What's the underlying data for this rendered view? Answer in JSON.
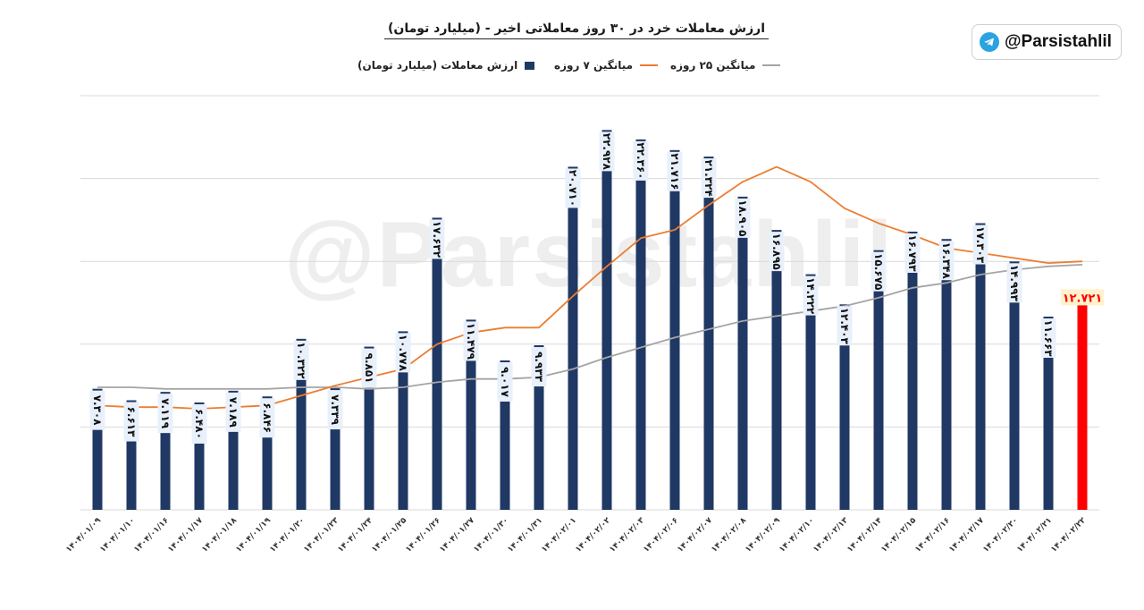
{
  "title": "ارزش معاملات خرد در ۳۰ روز معاملاتی اخیر - (میلیارد تومان)",
  "brand": {
    "handle": "@Parsistahlil",
    "icon": "telegram-icon"
  },
  "watermark": "@Parsistahlil",
  "colors": {
    "bar": "#203864",
    "last_bar": "#ff0000",
    "ma7": "#ed7d31",
    "ma25": "#a5a5a5",
    "label_bg": "#e8f0fb",
    "last_label_bg": "#fff2cc",
    "last_label_text": "#ff0000",
    "grid": "#d9d9d9"
  },
  "chart_data": {
    "type": "bar",
    "ylim": [
      0,
      25
    ],
    "grid": true,
    "legend_position": "top",
    "categories": [
      "۱۴۰۴/۰۱/۰۹",
      "۱۴۰۴/۰۱/۱۰",
      "۱۴۰۴/۰۱/۱۶",
      "۱۴۰۴/۰۱/۱۷",
      "۱۴۰۴/۰۱/۱۸",
      "۱۴۰۴/۰۱/۱۹",
      "۱۴۰۴/۰۱/۲۰",
      "۱۴۰۴/۰۱/۲۳",
      "۱۴۰۴/۰۱/۲۴",
      "۱۴۰۴/۰۱/۲۵",
      "۱۴۰۴/۰۱/۲۶",
      "۱۴۰۴/۰۱/۲۷",
      "۱۴۰۴/۰۱/۳۰",
      "۱۴۰۴/۰۱/۳۱",
      "۱۴۰۴/۰۲/۰۱",
      "۱۴۰۴/۰۲/۰۲",
      "۱۴۰۴/۰۲/۰۳",
      "۱۴۰۴/۰۲/۰۶",
      "۱۴۰۴/۰۲/۰۷",
      "۱۴۰۴/۰۲/۰۸",
      "۱۴۰۴/۰۲/۰۹",
      "۱۴۰۴/۰۲/۱۰",
      "۱۴۰۴/۰۲/۱۳",
      "۱۴۰۴/۰۲/۱۴",
      "۱۴۰۴/۰۲/۱۵",
      "۱۴۰۴/۰۲/۱۶",
      "۱۴۰۴/۰۲/۱۷",
      "۱۴۰۴/۰۲/۲۰",
      "۱۴۰۴/۰۲/۲۱",
      "۱۴۰۴/۰۲/۲۲"
    ],
    "series": [
      {
        "name": "ارزش معاملات (میلیارد تومان)",
        "type": "bar",
        "values": [
          7.308,
          6.613,
          7.119,
          6.48,
          7.189,
          6.846,
          10.322,
          7.339,
          9.851,
          10.778,
          17.632,
          11.479,
          9.017,
          9.933,
          20.71,
          22.928,
          22.36,
          21.716,
          21.324,
          18.905,
          16.895,
          14.222,
          12.403,
          15.675,
          16.793,
          16.348,
          17.303,
          14.993,
          11.663,
          12.721
        ],
        "labels": [
          "۷.۳۰۸",
          "۶.۶۱۳",
          "۷.۱۱۹",
          "۶.۴۸۰",
          "۷.۱۸۹",
          "۶.۸۴۶",
          "۱۰.۳۲۲",
          "۷.۳۳۹",
          "۹.۸۵۱",
          "۱۰.۷۷۸",
          "۱۷.۶۳۲",
          "۱۱.۴۷۹",
          "۹.۰۱۷",
          "۹.۹۳۳",
          "۲۰.۷۱۰",
          "۲۲.۹۲۸",
          "۲۲.۳۶۰",
          "۲۱.۷۱۶",
          "۲۱.۳۲۴",
          "۱۸.۹۰۵",
          "۱۶.۸۹۵",
          "۱۴.۲۲۲",
          "۱۲.۴۰۳",
          "۱۵.۶۷۵",
          "۱۶.۷۹۳",
          "۱۶.۳۴۸",
          "۱۷.۳۰۳",
          "۱۴.۹۹۳",
          "۱۱.۶۶۳",
          "۱۲.۷۲۱"
        ]
      },
      {
        "name": "میانگین ۷ روزه",
        "type": "line",
        "values": [
          6.3,
          6.2,
          6.2,
          6.1,
          6.2,
          6.3,
          6.9,
          7.5,
          8.0,
          8.5,
          10.0,
          10.7,
          11.0,
          11.0,
          12.9,
          14.7,
          16.4,
          16.9,
          18.4,
          19.8,
          20.7,
          19.8,
          18.2,
          17.3,
          16.6,
          15.8,
          15.5,
          15.2,
          14.9,
          15.0
        ]
      },
      {
        "name": "میانگین ۲۵ روزه",
        "type": "line",
        "values": [
          7.4,
          7.4,
          7.3,
          7.3,
          7.3,
          7.3,
          7.4,
          7.4,
          7.3,
          7.4,
          7.7,
          7.9,
          7.9,
          8.0,
          8.5,
          9.2,
          9.8,
          10.4,
          10.9,
          11.4,
          11.7,
          12.0,
          12.3,
          12.8,
          13.4,
          13.7,
          14.2,
          14.5,
          14.7,
          14.8
        ]
      }
    ]
  }
}
